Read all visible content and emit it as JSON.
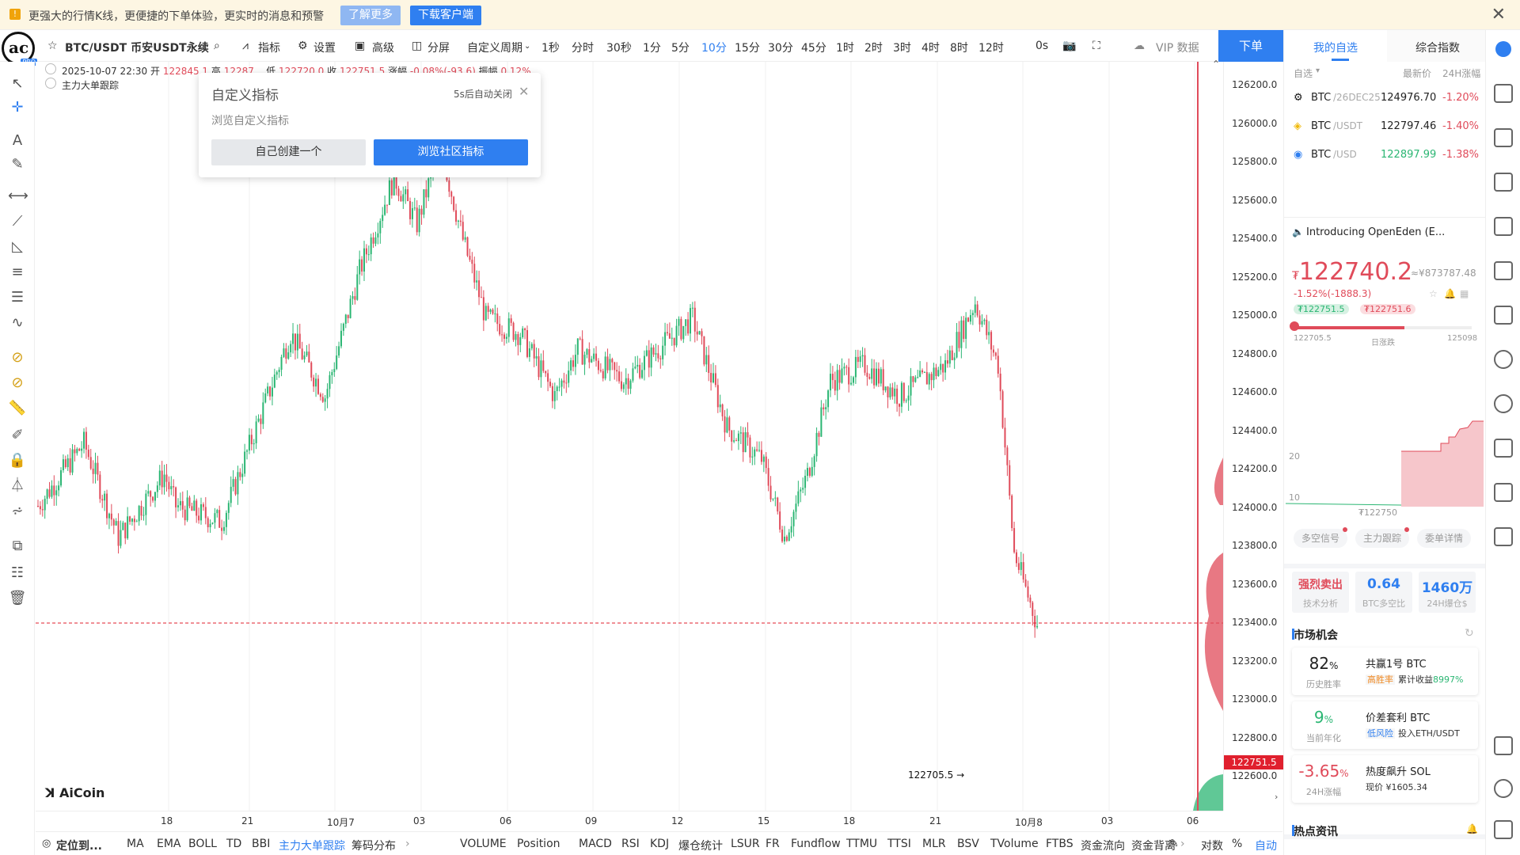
{
  "banner": {
    "text": "更强大的行情K线，更便捷的下单体验，更实时的消息和预警",
    "learn_more": "了解更多",
    "download": "下载客户端"
  },
  "toolbar": {
    "logo_badge": "PRO",
    "symbol": "BTC/USDT 币安USDT永续",
    "indicators": "指标",
    "settings": "设置",
    "advanced": "高级",
    "split": "分屏",
    "custom_period": "自定义周期",
    "periods": [
      "1秒",
      "分时",
      "30秒",
      "1分",
      "5分",
      "10分",
      "15分",
      "30分",
      "45分",
      "1时",
      "2时",
      "3时",
      "4时",
      "8时",
      "12时"
    ],
    "active_period": "10分",
    "countdown": "0s",
    "vip": "VIP 数据",
    "order": "下单"
  },
  "chart_header": {
    "datetime": "2025-10-07 22:30",
    "open_label": "开",
    "open": "122845.1",
    "high_label": "高",
    "high": "12287...",
    "low_label": "低",
    "low": "122720.0",
    "close_label": "收",
    "close": "122751.5",
    "change_label": "涨幅",
    "change": "-0.08%(-93.6)",
    "amp_label": "振幅",
    "amp": "0.12%",
    "indicator_label": "主力大单跟踪"
  },
  "popup": {
    "title": "自定义指标",
    "auto_close": "5s后自动关闭",
    "body": "浏览自定义指标",
    "create_btn": "自己创建一个",
    "browse_btn": "浏览社区指标"
  },
  "price_axis": {
    "labels": [
      "126200.0",
      "126000.0",
      "125800.0",
      "125600.0",
      "125400.0",
      "125200.0",
      "125000.0",
      "124800.0",
      "124600.0",
      "124400.0",
      "124200.0",
      "124000.0",
      "123800.0",
      "123600.0",
      "123400.0",
      "123200.0",
      "123000.0",
      "122800.0",
      "122600.0"
    ],
    "current": "122751.5"
  },
  "chart_annotations": {
    "low_marker": "122705.5 →",
    "watermark": "AiCoin"
  },
  "time_axis": [
    "18",
    "21",
    "10月7",
    "03",
    "06",
    "09",
    "12",
    "15",
    "18",
    "21",
    "10月8",
    "03",
    "06"
  ],
  "bottom_bar": {
    "locate": "定位到...",
    "items": [
      "MA",
      "EMA",
      "BOLL",
      "TD",
      "BBI",
      "主力大单跟踪",
      "筹码分布"
    ],
    "active": "主力大单跟踪",
    "sub_items": [
      "VOLUME",
      "Position",
      "MACD",
      "RSI",
      "KDJ",
      "爆仓统计",
      "LSUR",
      "FR",
      "Fundflow",
      "TTMU",
      "TTSI",
      "MLR",
      "BSV",
      "TVolume",
      "FTBS",
      "资金流向",
      "资金背离"
    ],
    "log": "对数",
    "pct": "%",
    "auto": "自动"
  },
  "right_panel": {
    "tabs": [
      "我的自选",
      "综合指数"
    ],
    "active_tab": "我的自选",
    "list_header": {
      "group": "自选",
      "price": "最新价",
      "change": "24H涨幅"
    },
    "watchlist": [
      {
        "symbol": "BTC",
        "suffix": "/26DEC25",
        "price": "124976.70",
        "change": "-1.20%"
      },
      {
        "symbol": "BTC",
        "suffix": "/USDT",
        "price": "122797.46",
        "change": "-1.40%"
      },
      {
        "symbol": "BTC",
        "suffix": "/USD",
        "price": "122897.99",
        "change": "-1.38%"
      }
    ],
    "news": "Introducing OpenEden (E...",
    "price_symbol": "₮",
    "big_price": "122740.2",
    "cny_price": "≈¥873787.48",
    "change": "-1.52%(-1888.3)",
    "bid": "₮122751.5",
    "ask": "₮122751.6",
    "range_low": "122705.5",
    "range_label": "日涨跌",
    "range_high": "125098",
    "range_position": 0.62,
    "depth_y_labels": [
      "20",
      "10"
    ],
    "depth_price": "₮122750",
    "sub_tabs": [
      "多空信号",
      "主力跟踪",
      "委单详情"
    ],
    "stats": [
      {
        "value": "强烈卖出",
        "label": "技术分析"
      },
      {
        "value": "0.64",
        "label": "BTC多空比"
      },
      {
        "value": "1460万",
        "label": "24H爆仓$"
      }
    ],
    "market_title": "市场机会",
    "opportunities": [
      {
        "big": "82",
        "unit": "%",
        "sub": "历史胜率",
        "name": "共赢1号 BTC",
        "tag": "高胜率",
        "desc": "累计收益",
        "extra": "8997%"
      },
      {
        "big": "9",
        "unit": "%",
        "sub": "当前年化",
        "name": "价差套利 BTC",
        "tag": "低风险",
        "desc": "投入ETH/USDT",
        "extra": ""
      },
      {
        "big": "-3.65",
        "unit": "%",
        "sub": "24H涨幅",
        "name": "热度飙升 SOL",
        "tag": "",
        "desc": "现价 ¥1605.34",
        "extra": ""
      }
    ],
    "hot_title": "热点资讯"
  },
  "colors": {
    "accent": "#2f7ff0",
    "up": "#2bb673",
    "down": "#e04b5a"
  }
}
